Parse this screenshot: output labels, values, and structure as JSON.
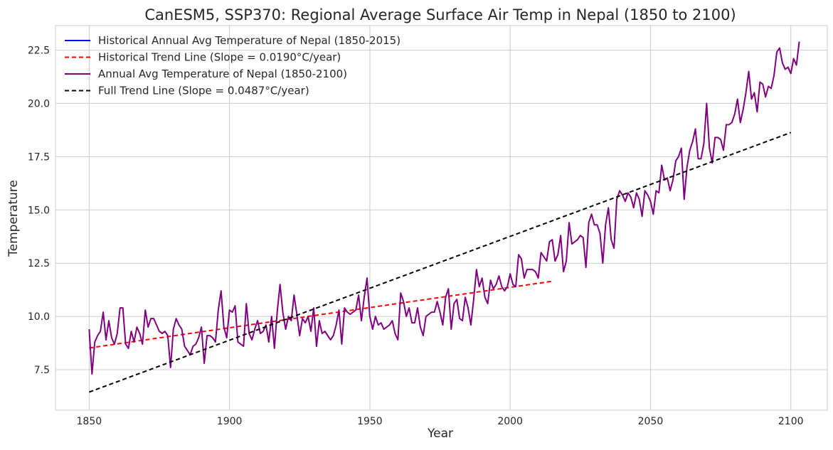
{
  "chart_data": {
    "type": "line",
    "title": "CanESM5, SSP370: Regional Average Surface Air Temp in Nepal (1850 to 2100)",
    "xlabel": "Year",
    "ylabel": "Temperature",
    "xlim": [
      1838,
      2113
    ],
    "ylim": [
      5.6,
      23.65
    ],
    "xticks": [
      1850,
      1900,
      1950,
      2000,
      2050,
      2100
    ],
    "yticks": [
      7.5,
      10.0,
      12.5,
      15.0,
      17.5,
      20.0,
      22.5
    ],
    "ytick_labels": [
      "7.5",
      "10.0",
      "12.5",
      "15.0",
      "17.5",
      "20.0",
      "22.5"
    ],
    "grid": true,
    "legend_position": "top-left",
    "series": [
      {
        "name": "Historical Annual Avg Temperature of Nepal (1850-2015)",
        "style": "solid",
        "color": "#0000ff",
        "x_start": 1850,
        "values": []
      },
      {
        "name": "Historical Trend Line (Slope = 0.0190°C/year)",
        "style": "dashed",
        "color": "#ff0000",
        "x": [
          1850,
          2015
        ],
        "values": [
          8.52,
          11.65
        ]
      },
      {
        "name": "Annual Avg Temperature of Nepal (1850-2100)",
        "style": "solid",
        "color": "#800080",
        "x_start": 1850,
        "values": [
          9.4,
          7.3,
          8.8,
          9.1,
          9.3,
          10.2,
          8.9,
          9.8,
          9.0,
          8.7,
          9.2,
          10.4,
          10.4,
          8.7,
          8.5,
          9.3,
          8.8,
          9.5,
          9.2,
          8.7,
          10.3,
          9.5,
          9.9,
          9.9,
          9.6,
          9.3,
          9.2,
          9.3,
          9.1,
          7.6,
          9.4,
          9.9,
          9.6,
          9.4,
          8.6,
          8.4,
          8.2,
          8.6,
          8.7,
          9.0,
          9.5,
          7.8,
          9.1,
          9.1,
          9.0,
          8.8,
          10.3,
          11.2,
          9.5,
          9.0,
          10.3,
          10.2,
          10.5,
          8.8,
          8.7,
          8.6,
          10.6,
          9.2,
          8.9,
          9.4,
          9.8,
          9.2,
          9.3,
          9.6,
          8.8,
          10.0,
          8.5,
          10.2,
          11.5,
          10.2,
          9.4,
          10.0,
          9.8,
          11.0,
          10.1,
          9.1,
          9.9,
          9.7,
          10.0,
          9.3,
          10.4,
          8.6,
          9.8,
          9.2,
          9.3,
          9.1,
          8.9,
          9.1,
          9.6,
          10.3,
          8.7,
          10.4,
          10.2,
          10.1,
          10.2,
          10.3,
          11.0,
          9.8,
          10.9,
          11.8,
          10.0,
          9.4,
          10.0,
          9.6,
          9.7,
          9.4,
          9.5,
          9.6,
          9.8,
          9.2,
          8.9,
          11.1,
          10.7,
          10.0,
          10.4,
          9.7,
          9.7,
          10.4,
          9.5,
          9.1,
          10.0,
          10.1,
          10.2,
          10.2,
          10.7,
          10.2,
          9.6,
          10.9,
          11.3,
          9.4,
          10.6,
          10.8,
          9.9,
          9.8,
          10.9,
          10.4,
          9.6,
          10.8,
          12.2,
          11.4,
          11.8,
          10.9,
          10.6,
          11.7,
          11.3,
          11.5,
          11.9,
          11.4,
          11.2,
          11.4,
          12.0,
          11.5,
          11.4,
          12.9,
          12.7,
          11.8,
          12.2,
          12.2,
          12.2,
          12.1,
          11.8,
          13.0,
          12.8,
          12.6,
          13.5,
          13.6,
          12.6,
          12.9,
          13.8,
          12.1,
          12.6,
          14.4,
          13.4,
          13.5,
          13.6,
          13.8,
          13.7,
          12.3,
          14.4,
          14.8,
          14.3,
          14.3,
          13.9,
          12.5,
          14.3,
          15.1,
          13.6,
          13.2,
          15.5,
          15.9,
          15.7,
          15.4,
          15.8,
          15.6,
          15.1,
          15.8,
          15.5,
          14.7,
          15.9,
          15.7,
          15.4,
          14.8,
          15.9,
          15.8,
          17.1,
          16.4,
          16.5,
          15.9,
          16.4,
          17.3,
          17.5,
          17.9,
          15.5,
          17.0,
          17.8,
          18.2,
          18.8,
          17.4,
          17.4,
          18.1,
          20.0,
          17.9,
          17.2,
          18.4,
          18.4,
          18.3,
          17.8,
          19.0,
          19.0,
          19.1,
          19.5,
          20.2,
          19.1,
          19.7,
          20.5,
          21.5,
          20.2,
          20.5,
          19.6,
          21.0,
          20.9,
          20.3,
          20.8,
          20.7,
          21.3,
          22.4,
          22.6,
          21.9,
          21.6,
          21.7,
          21.4,
          22.1,
          21.8,
          22.9
        ]
      },
      {
        "name": "Full Trend Line (Slope = 0.0487°C/year)",
        "style": "dashed",
        "color": "#000000",
        "x": [
          1850,
          2100
        ],
        "values": [
          6.45,
          18.63
        ]
      }
    ]
  }
}
